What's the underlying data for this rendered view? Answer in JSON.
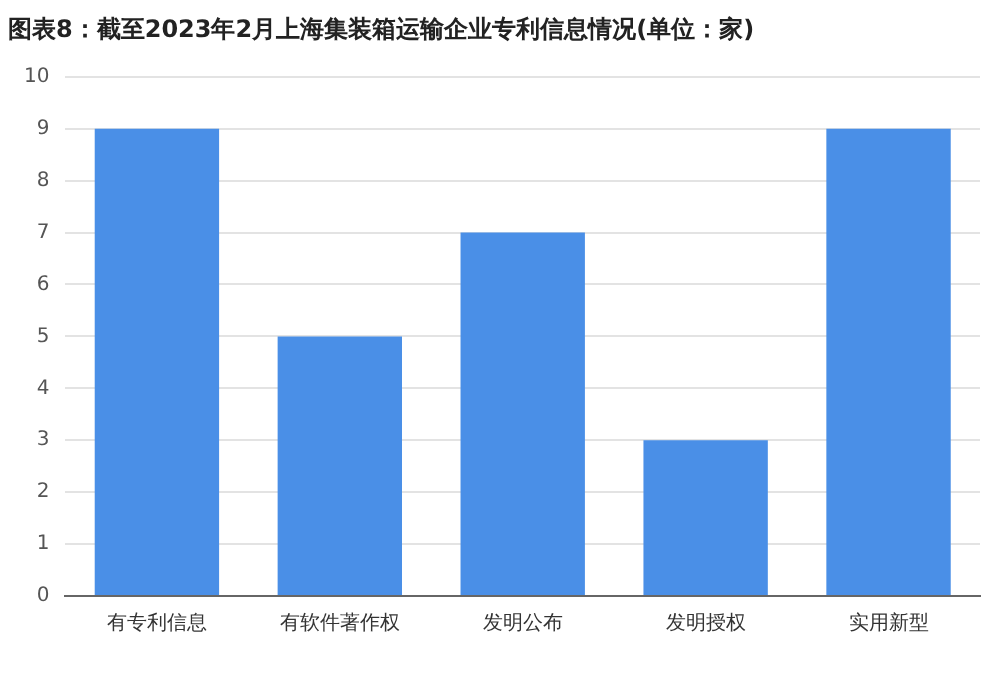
{
  "chart_data": {
    "type": "bar",
    "title": "图表8：截至2023年2月上海集装箱运输企业专利信息情况(单位：家)",
    "categories": [
      "有专利信息",
      "有软件著作权",
      "发明公布",
      "发明授权",
      "实用新型"
    ],
    "values": [
      9,
      5,
      7,
      3,
      9
    ],
    "color": "#4a8fe7",
    "ylim": [
      0,
      10
    ],
    "yticks": [
      0,
      1,
      2,
      3,
      4,
      5,
      6,
      7,
      8,
      9,
      10
    ],
    "grid": "y"
  }
}
